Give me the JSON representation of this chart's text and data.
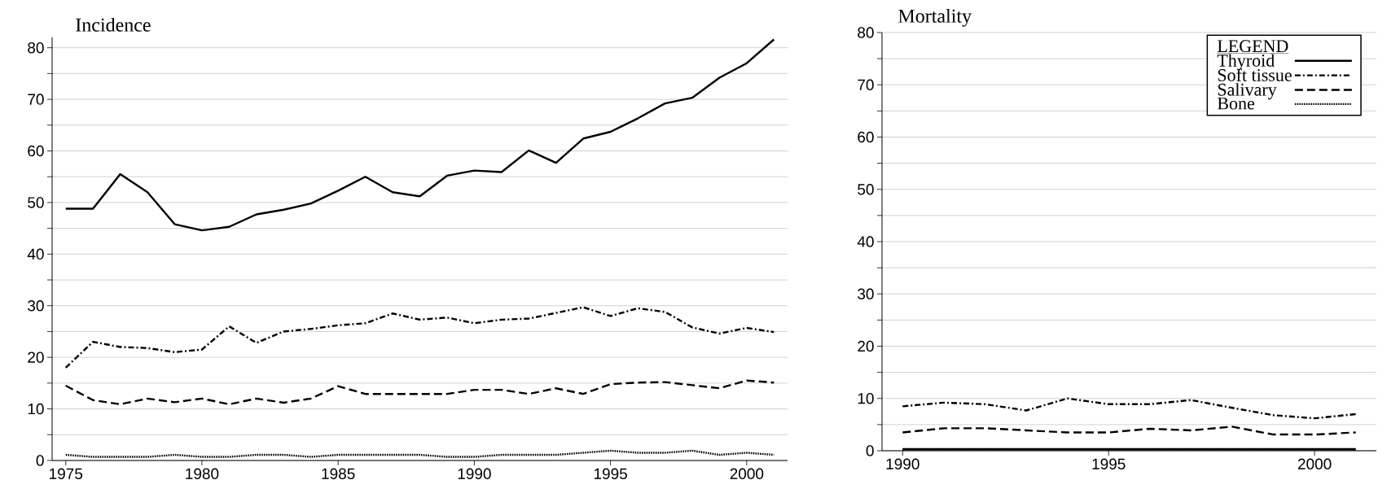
{
  "chart_data": [
    {
      "type": "line",
      "title": "Incidence",
      "x": [
        1975,
        1976,
        1977,
        1978,
        1979,
        1980,
        1981,
        1982,
        1983,
        1984,
        1985,
        1986,
        1987,
        1988,
        1989,
        1990,
        1991,
        1992,
        1993,
        1994,
        1995,
        1996,
        1997,
        1998,
        1999,
        2000,
        2001
      ],
      "xlim": [
        1974.5,
        2001.5
      ],
      "xticks": [
        1975,
        1980,
        1985,
        1990,
        1995,
        2000
      ],
      "ylim": [
        0,
        82
      ],
      "yticks": [
        0,
        {
          "value": 5,
          "label": null
        },
        10,
        {
          "value": 15,
          "label": null
        },
        20,
        {
          "value": 25,
          "label": null
        },
        30,
        {
          "value": 35,
          "label": null
        },
        40,
        {
          "value": 45,
          "label": null
        },
        50,
        {
          "value": 55,
          "label": null
        },
        60,
        {
          "value": 65,
          "label": null
        },
        70,
        {
          "value": 75,
          "label": null
        },
        80
      ],
      "grid": "y",
      "legend": false,
      "series": [
        {
          "color": "#000000",
          "line_style": "solid",
          "values": [
            48.8,
            48.8,
            55.5,
            52,
            45.8,
            44.6,
            45.3,
            47.7,
            48.6,
            49.8,
            52.3,
            55,
            52,
            51.2,
            55.2,
            56.2,
            55.9,
            60.1,
            57.7,
            62.4,
            63.7,
            66.3,
            69.2,
            70.3,
            74.2,
            77,
            81.6
          ]
        },
        {
          "color": "#000000",
          "line_style": "dashdot",
          "values": [
            18,
            23,
            22,
            21.8,
            21,
            21.5,
            26,
            22.8,
            25,
            25.5,
            26.2,
            26.6,
            28.5,
            27.3,
            27.7,
            26.6,
            27.3,
            27.5,
            28.6,
            29.7,
            28,
            29.5,
            28.8,
            25.8,
            24.6,
            25.7,
            24.9
          ]
        },
        {
          "color": "#000000",
          "line_style": "dashed",
          "values": [
            14.5,
            11.7,
            10.9,
            12,
            11.3,
            12,
            10.9,
            12,
            11.2,
            12,
            14.4,
            12.9,
            12.9,
            12.9,
            12.9,
            13.7,
            13.7,
            12.9,
            14,
            12.9,
            14.8,
            15.1,
            15.2,
            14.6,
            14,
            15.5,
            15.1
          ]
        },
        {
          "color": "#000000",
          "line_style": "dotted",
          "values": [
            1.1,
            0.7,
            0.7,
            0.7,
            1.1,
            0.7,
            0.7,
            1.1,
            1.1,
            0.7,
            1.1,
            1.1,
            1.1,
            1.1,
            0.7,
            0.7,
            1.1,
            1.1,
            1.1,
            1.5,
            1.9,
            1.5,
            1.5,
            1.9,
            1.1,
            1.5,
            1.1
          ]
        }
      ]
    },
    {
      "type": "line",
      "title": "Mortality",
      "x": [
        1990,
        1991,
        1992,
        1993,
        1994,
        1995,
        1996,
        1997,
        1998,
        1999,
        2000,
        2001
      ],
      "xlim": [
        1989.5,
        2001.5
      ],
      "xticks": [
        1990,
        1995,
        2000
      ],
      "ylim": [
        0,
        80
      ],
      "yticks": [
        0,
        {
          "value": 5,
          "label": null
        },
        10,
        {
          "value": 15,
          "label": null
        },
        20,
        {
          "value": 25,
          "label": null
        },
        30,
        {
          "value": 35,
          "label": null
        },
        40,
        {
          "value": 45,
          "label": null
        },
        50,
        {
          "value": 55,
          "label": null
        },
        60,
        {
          "value": 65,
          "label": null
        },
        70,
        {
          "value": 75,
          "label": null
        },
        80
      ],
      "grid": "y",
      "legend": "top right",
      "legend_title": "LEGEND",
      "series": [
        {
          "name": "Thyroid",
          "color": "#000000",
          "line_style": "solid",
          "values": [
            0.3,
            0.3,
            0.3,
            0.3,
            0.3,
            0.3,
            0.3,
            0.3,
            0.3,
            0.3,
            0.3,
            0.3
          ]
        },
        {
          "name": "Soft tissue",
          "color": "#000000",
          "line_style": "dashdot",
          "values": [
            8.5,
            9.2,
            8.9,
            7.7,
            10,
            8.9,
            8.9,
            9.7,
            8.2,
            6.8,
            6.2,
            7
          ]
        },
        {
          "name": "Salivary",
          "color": "#000000",
          "line_style": "dashed",
          "values": [
            3.5,
            4.3,
            4.3,
            3.9,
            3.5,
            3.5,
            4.2,
            3.9,
            4.6,
            3.1,
            3.1,
            3.5
          ]
        },
        {
          "name": "Bone",
          "color": "#000000",
          "line_style": "dotted",
          "values": [
            0.2,
            0.2,
            0.2,
            0.2,
            0.2,
            0.2,
            0.2,
            0.2,
            0.2,
            0.2,
            0.2,
            0.2
          ]
        }
      ]
    }
  ]
}
